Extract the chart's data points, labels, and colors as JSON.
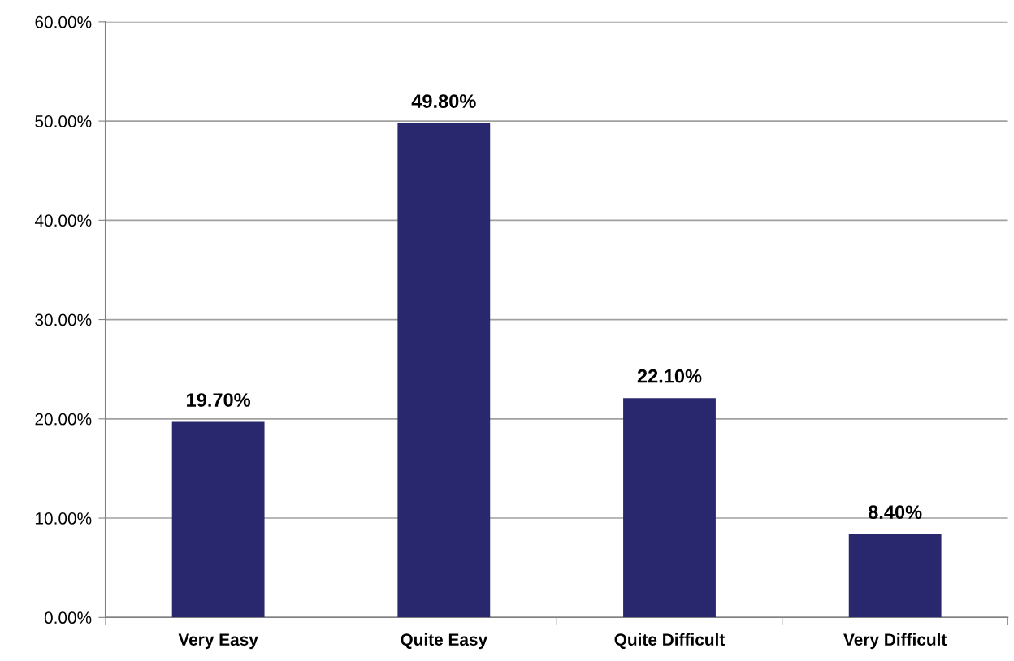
{
  "chart_data": {
    "type": "bar",
    "categories": [
      "Very Easy",
      "Quite Easy",
      "Quite Difficult",
      "Very Difficult"
    ],
    "values": [
      19.7,
      49.8,
      22.1,
      8.4
    ],
    "value_labels": [
      "19.70%",
      "49.80%",
      "22.10%",
      "8.40%"
    ],
    "color": "#29286e",
    "ylim": [
      0,
      60
    ],
    "yticks": [
      {
        "value": 0,
        "label": "0.00%"
      },
      {
        "value": 10,
        "label": "10.00%"
      },
      {
        "value": 20,
        "label": "20.00%"
      },
      {
        "value": 30,
        "label": "30.00%"
      },
      {
        "value": 40,
        "label": "40.00%"
      },
      {
        "value": 50,
        "label": "50.00%"
      },
      {
        "value": 60,
        "label": "60.00%"
      }
    ],
    "grid": "y"
  }
}
